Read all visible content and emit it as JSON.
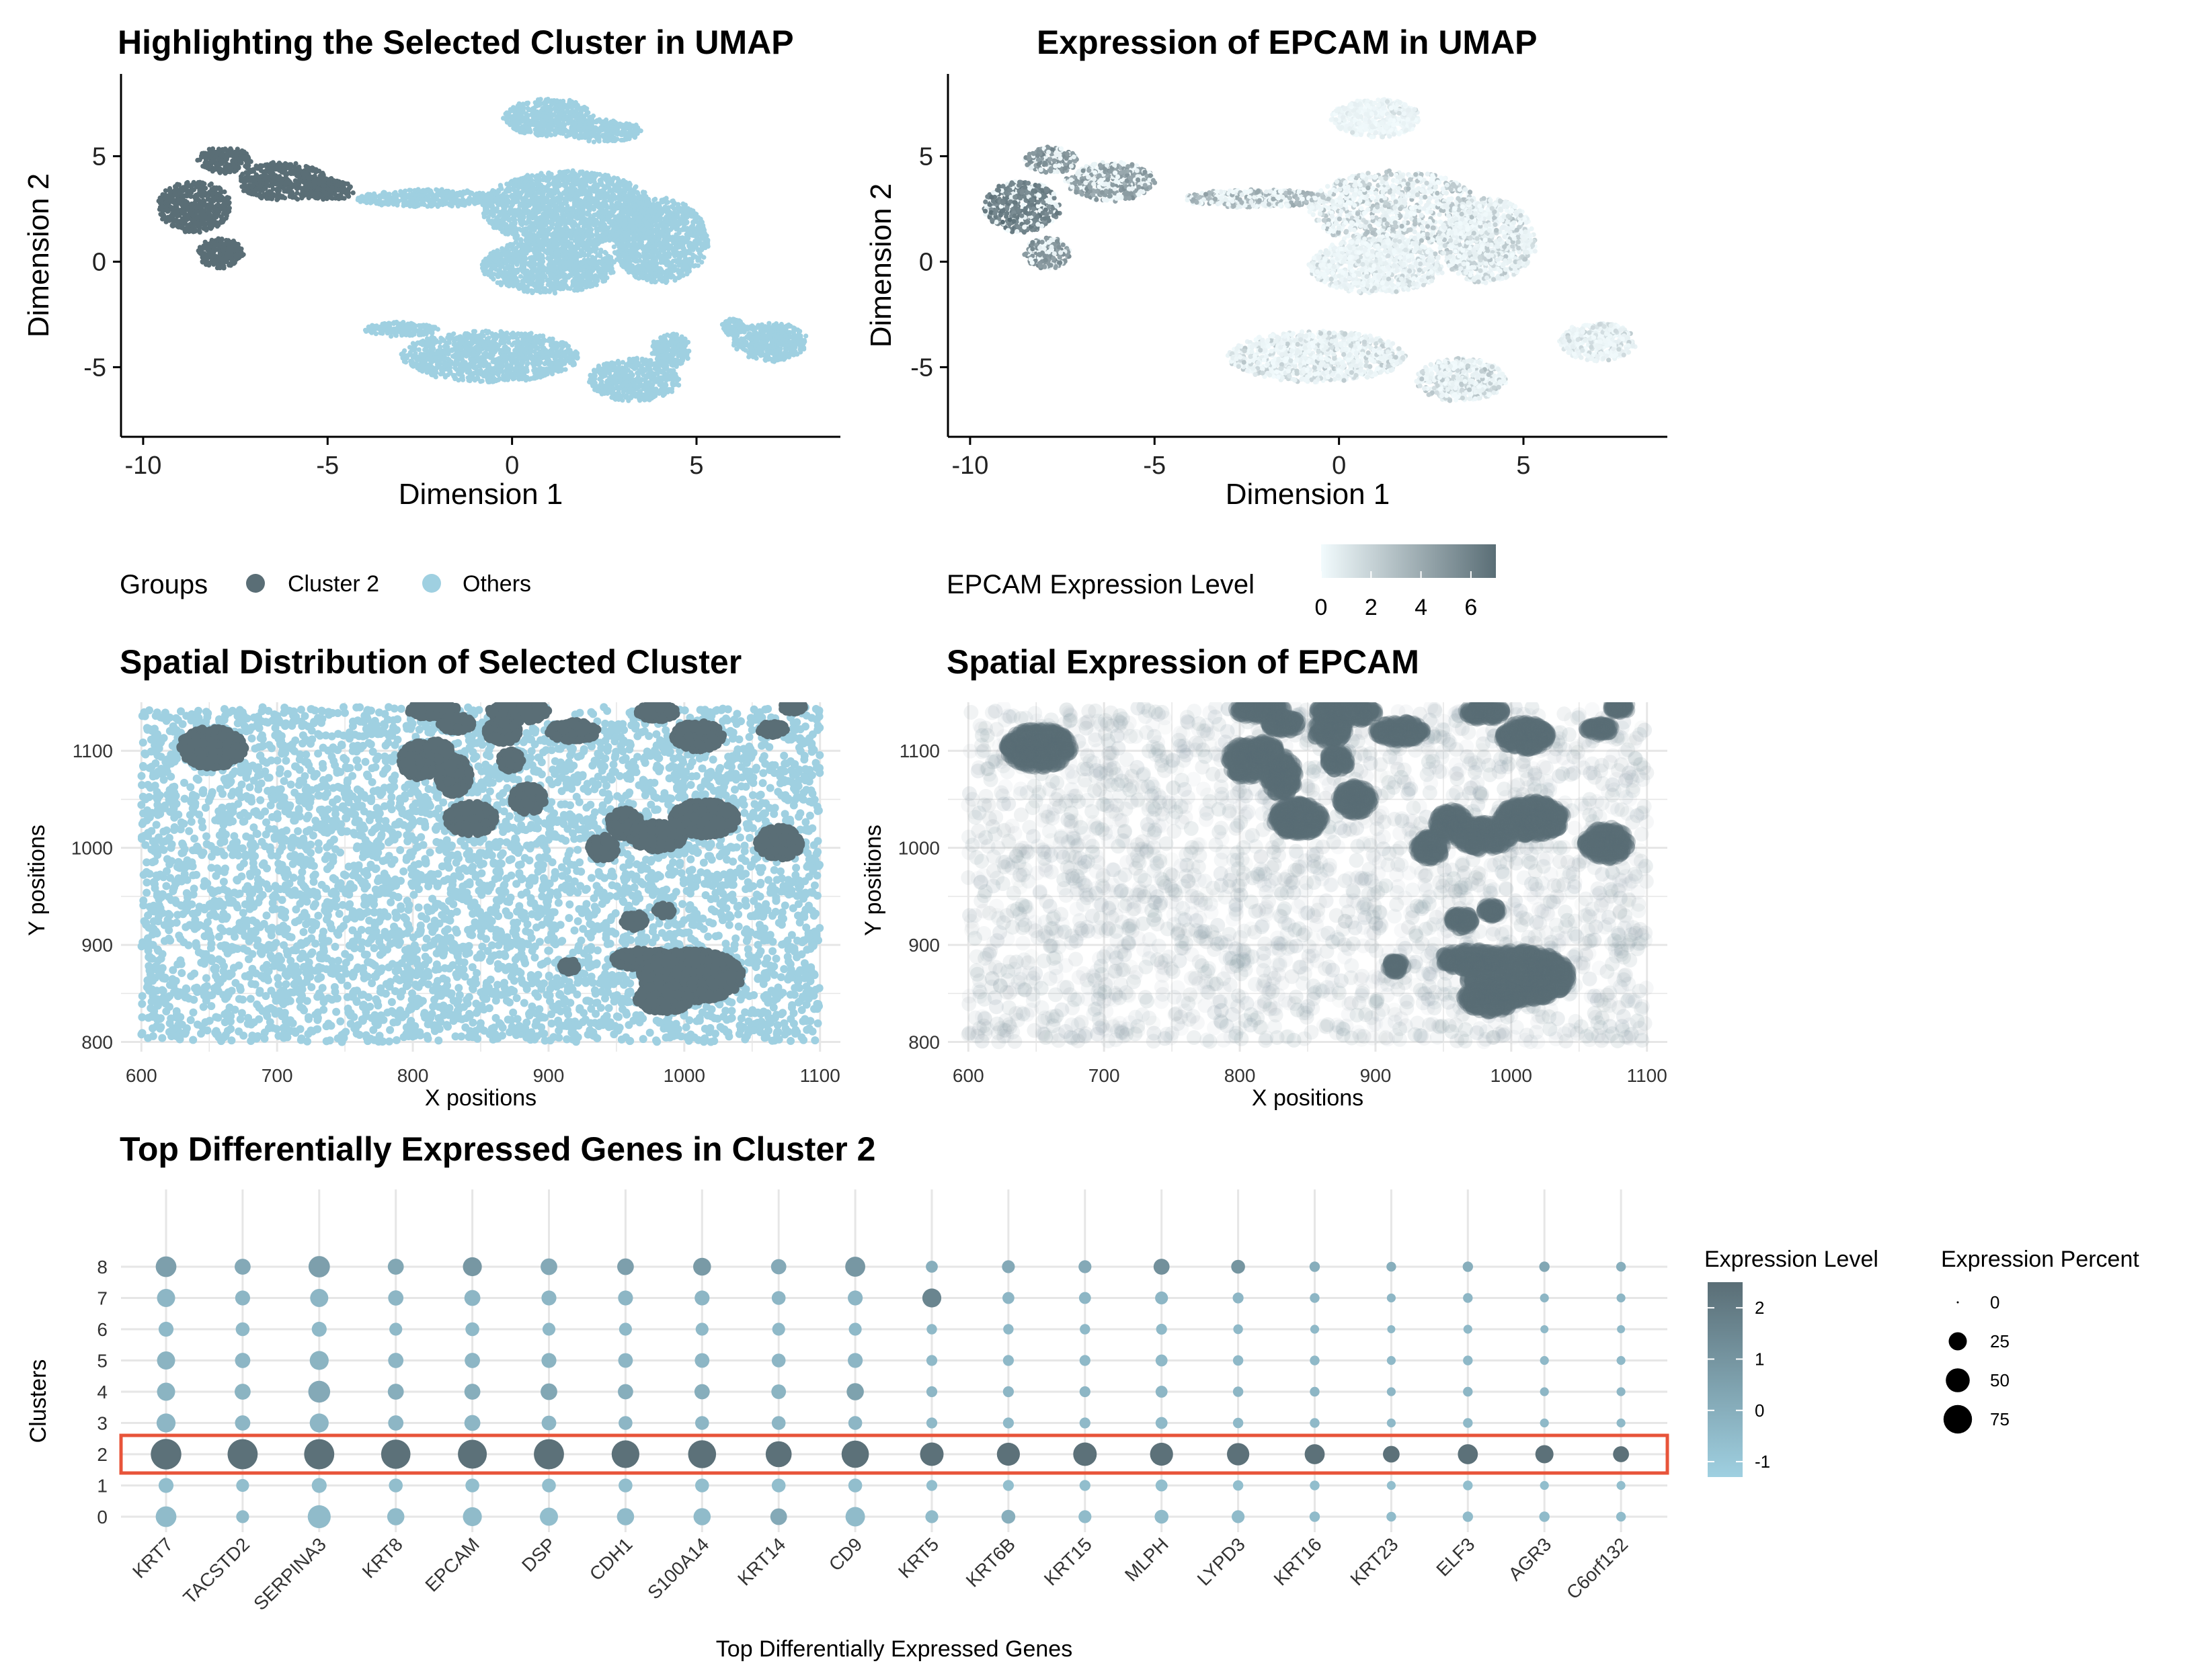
{
  "colors": {
    "cluster": "#5a6e76",
    "others": "#9fd0e1",
    "epcam_low": "#f2fbfd",
    "epcam_high": "#5a6e76",
    "dot_low": "#9fd0e1",
    "dot_high": "#5a6e76",
    "highlight": "#e8543a",
    "grid": "#e6e6e6"
  },
  "chart_data": [
    {
      "id": "umap_cluster",
      "type": "scatter",
      "title": "Highlighting the Selected Cluster in UMAP",
      "xlabel": "Dimension 1",
      "ylabel": "Dimension 2",
      "xlim": [
        -10.6,
        8.9
      ],
      "ylim": [
        -8.3,
        8.9
      ],
      "xticks": [
        -10,
        -5,
        0,
        5
      ],
      "yticks": [
        -5,
        0,
        5
      ],
      "grid": false,
      "legend": {
        "position": "bottom",
        "title": "Groups",
        "entries": [
          {
            "label": "Cluster 2",
            "color": "#5a6e76"
          },
          {
            "label": "Others",
            "color": "#9fd0e1"
          }
        ]
      },
      "regions": [
        {
          "group": "Cluster 2",
          "cx": -8.6,
          "cy": 2.6,
          "rx": 1.0,
          "ry": 1.2
        },
        {
          "group": "Cluster 2",
          "cx": -7.8,
          "cy": 4.8,
          "rx": 0.7,
          "ry": 0.6
        },
        {
          "group": "Cluster 2",
          "cx": -7.9,
          "cy": 0.4,
          "rx": 0.6,
          "ry": 0.7
        },
        {
          "group": "Cluster 2",
          "cx": -6.2,
          "cy": 3.8,
          "rx": 1.2,
          "ry": 0.9
        },
        {
          "group": "Cluster 2",
          "cx": -5.0,
          "cy": 3.4,
          "rx": 0.7,
          "ry": 0.5
        },
        {
          "group": "Others",
          "cx": -2.2,
          "cy": 3.0,
          "rx": 2.0,
          "ry": 0.4
        },
        {
          "group": "Others",
          "cx": 1.0,
          "cy": 6.8,
          "rx": 1.2,
          "ry": 0.9
        },
        {
          "group": "Others",
          "cx": 2.5,
          "cy": 6.2,
          "rx": 1.0,
          "ry": 0.5
        },
        {
          "group": "Others",
          "cx": 1.5,
          "cy": 2.5,
          "rx": 2.3,
          "ry": 1.8
        },
        {
          "group": "Others",
          "cx": 4.0,
          "cy": 1.0,
          "rx": 1.3,
          "ry": 2.0
        },
        {
          "group": "Others",
          "cx": 1.0,
          "cy": -0.2,
          "rx": 1.8,
          "ry": 1.3
        },
        {
          "group": "Others",
          "cx": -0.6,
          "cy": -4.5,
          "rx": 2.4,
          "ry": 1.2
        },
        {
          "group": "Others",
          "cx": -3.0,
          "cy": -3.2,
          "rx": 1.0,
          "ry": 0.3
        },
        {
          "group": "Others",
          "cx": 3.3,
          "cy": -5.6,
          "rx": 1.2,
          "ry": 1.0
        },
        {
          "group": "Others",
          "cx": 4.3,
          "cy": -4.2,
          "rx": 0.5,
          "ry": 0.8
        },
        {
          "group": "Others",
          "cx": 7.0,
          "cy": -3.8,
          "rx": 1.0,
          "ry": 0.9
        },
        {
          "group": "Others",
          "cx": 6.0,
          "cy": -3.1,
          "rx": 0.3,
          "ry": 0.4
        }
      ]
    },
    {
      "id": "umap_epcam",
      "type": "scatter",
      "title": "Expression of EPCAM in UMAP",
      "xlabel": "Dimension 1",
      "ylabel": "Dimension 2",
      "xlim": [
        -10.6,
        8.9
      ],
      "ylim": [
        -8.3,
        8.9
      ],
      "xticks": [
        -10,
        -5,
        0,
        5
      ],
      "yticks": [
        -5,
        0,
        5
      ],
      "grid": false,
      "legend": {
        "position": "bottom",
        "title": "EPCAM Expression Level",
        "range": [
          0,
          7
        ],
        "ticks": [
          0,
          2,
          4,
          6
        ]
      },
      "regions": [
        {
          "level": 6.0,
          "cx": -8.6,
          "cy": 2.6,
          "rx": 1.0,
          "ry": 1.2
        },
        {
          "level": 5.0,
          "cx": -7.8,
          "cy": 4.8,
          "rx": 0.7,
          "ry": 0.6
        },
        {
          "level": 5.0,
          "cx": -7.9,
          "cy": 0.4,
          "rx": 0.6,
          "ry": 0.7
        },
        {
          "level": 4.5,
          "cx": -6.2,
          "cy": 3.8,
          "rx": 1.2,
          "ry": 0.9
        },
        {
          "level": 3.5,
          "cx": -2.2,
          "cy": 3.0,
          "rx": 2.0,
          "ry": 0.4
        },
        {
          "level": 0.8,
          "cx": 1.0,
          "cy": 6.8,
          "rx": 1.2,
          "ry": 0.9
        },
        {
          "level": 2.5,
          "cx": 1.5,
          "cy": 2.5,
          "rx": 2.3,
          "ry": 1.8
        },
        {
          "level": 2.0,
          "cx": 4.0,
          "cy": 1.0,
          "rx": 1.3,
          "ry": 2.0
        },
        {
          "level": 1.5,
          "cx": 1.0,
          "cy": -0.2,
          "rx": 1.8,
          "ry": 1.3
        },
        {
          "level": 1.8,
          "cx": -0.6,
          "cy": -4.5,
          "rx": 2.4,
          "ry": 1.2
        },
        {
          "level": 2.0,
          "cx": 3.3,
          "cy": -5.6,
          "rx": 1.2,
          "ry": 1.0
        },
        {
          "level": 1.5,
          "cx": 7.0,
          "cy": -3.8,
          "rx": 1.0,
          "ry": 0.9
        }
      ]
    },
    {
      "id": "spatial_cluster",
      "type": "scatter",
      "title": "Spatial Distribution of Selected Cluster",
      "xlabel": "X positions",
      "ylabel": "Y positions",
      "xlim": [
        585,
        1115
      ],
      "ylim": [
        790,
        1150
      ],
      "xticks": [
        600,
        700,
        800,
        900,
        1000,
        1100
      ],
      "yticks": [
        800,
        900,
        1000,
        1100
      ],
      "grid": true,
      "background_fill": [
        600,
        1100,
        800,
        1145
      ],
      "clusters": [
        {
          "cx": 652,
          "cy": 1103,
          "rx": 24,
          "ry": 20
        },
        {
          "cx": 815,
          "cy": 1142,
          "rx": 18,
          "ry": 8
        },
        {
          "cx": 832,
          "cy": 1128,
          "rx": 12,
          "ry": 8
        },
        {
          "cx": 805,
          "cy": 1090,
          "rx": 14,
          "ry": 18
        },
        {
          "cx": 830,
          "cy": 1075,
          "rx": 12,
          "ry": 20
        },
        {
          "cx": 843,
          "cy": 1030,
          "rx": 18,
          "ry": 16
        },
        {
          "cx": 818,
          "cy": 1100,
          "rx": 10,
          "ry": 10
        },
        {
          "cx": 878,
          "cy": 1140,
          "rx": 22,
          "ry": 10
        },
        {
          "cx": 866,
          "cy": 1120,
          "rx": 12,
          "ry": 12
        },
        {
          "cx": 872,
          "cy": 1090,
          "rx": 8,
          "ry": 10
        },
        {
          "cx": 885,
          "cy": 1050,
          "rx": 12,
          "ry": 14
        },
        {
          "cx": 918,
          "cy": 1120,
          "rx": 18,
          "ry": 10
        },
        {
          "cx": 980,
          "cy": 1140,
          "rx": 14,
          "ry": 8
        },
        {
          "cx": 1010,
          "cy": 1115,
          "rx": 18,
          "ry": 14
        },
        {
          "cx": 1065,
          "cy": 1122,
          "rx": 10,
          "ry": 6
        },
        {
          "cx": 1080,
          "cy": 1145,
          "rx": 8,
          "ry": 5
        },
        {
          "cx": 956,
          "cy": 1025,
          "rx": 12,
          "ry": 14
        },
        {
          "cx": 940,
          "cy": 1000,
          "rx": 10,
          "ry": 12
        },
        {
          "cx": 980,
          "cy": 1012,
          "rx": 20,
          "ry": 14
        },
        {
          "cx": 1015,
          "cy": 1030,
          "rx": 24,
          "ry": 18
        },
        {
          "cx": 1070,
          "cy": 1005,
          "rx": 16,
          "ry": 16
        },
        {
          "cx": 963,
          "cy": 925,
          "rx": 8,
          "ry": 8
        },
        {
          "cx": 985,
          "cy": 935,
          "rx": 6,
          "ry": 6
        },
        {
          "cx": 915,
          "cy": 878,
          "rx": 6,
          "ry": 6
        },
        {
          "cx": 970,
          "cy": 885,
          "rx": 22,
          "ry": 10
        },
        {
          "cx": 1005,
          "cy": 868,
          "rx": 38,
          "ry": 26
        },
        {
          "cx": 985,
          "cy": 845,
          "rx": 20,
          "ry": 14
        }
      ]
    },
    {
      "id": "spatial_epcam",
      "type": "scatter",
      "title": "Spatial Expression of EPCAM",
      "xlabel": "X positions",
      "ylabel": "Y positions",
      "xlim": [
        585,
        1115
      ],
      "ylim": [
        790,
        1150
      ],
      "xticks": [
        600,
        700,
        800,
        900,
        1000,
        1100
      ],
      "yticks": [
        800,
        900,
        1000,
        1100
      ],
      "grid": true
    },
    {
      "id": "dotplot",
      "type": "scatter",
      "title": "Top Differentially Expressed Genes in Cluster 2",
      "xlabel": "Top Differentially Expressed Genes",
      "ylabel": "Clusters",
      "grid": true,
      "genes": [
        "KRT7",
        "TACSTD2",
        "SERPINA3",
        "KRT8",
        "EPCAM",
        "DSP",
        "CDH1",
        "S100A14",
        "KRT14",
        "CD9",
        "KRT5",
        "KRT6B",
        "KRT15",
        "MLPH",
        "LYPD3",
        "KRT16",
        "KRT23",
        "ELF3",
        "AGR3",
        "C6orf132"
      ],
      "clusters": [
        "0",
        "1",
        "2",
        "3",
        "4",
        "5",
        "6",
        "7",
        "8"
      ],
      "highlight_cluster": "2",
      "color_legend": {
        "title": "Expression Level",
        "range": [
          -1.3,
          2.5
        ],
        "ticks": [
          -1,
          0,
          1,
          2
        ]
      },
      "size_legend": {
        "title": "Expression Percent",
        "ticks": [
          0,
          25,
          50,
          75
        ]
      },
      "percent": [
        [
          35,
          10,
          45,
          22,
          28,
          25,
          22,
          22,
          20,
          30,
          10,
          12,
          10,
          12,
          10,
          5,
          4,
          5,
          5,
          4
        ],
        [
          15,
          10,
          15,
          12,
          12,
          12,
          12,
          12,
          12,
          12,
          6,
          6,
          6,
          8,
          5,
          4,
          3,
          4,
          3,
          3
        ],
        [
          88,
          85,
          85,
          80,
          78,
          85,
          70,
          72,
          60,
          68,
          48,
          45,
          48,
          45,
          42,
          32,
          20,
          32,
          25,
          18
        ],
        [
          28,
          16,
          28,
          16,
          18,
          14,
          12,
          12,
          12,
          12,
          6,
          6,
          6,
          8,
          5,
          4,
          3,
          4,
          3,
          3
        ],
        [
          25,
          18,
          40,
          18,
          18,
          20,
          16,
          16,
          14,
          22,
          6,
          6,
          6,
          8,
          5,
          4,
          3,
          4,
          3,
          3
        ],
        [
          25,
          16,
          28,
          16,
          16,
          15,
          14,
          14,
          12,
          15,
          6,
          6,
          6,
          8,
          5,
          4,
          3,
          4,
          3,
          3
        ],
        [
          15,
          12,
          15,
          10,
          12,
          10,
          10,
          10,
          10,
          10,
          5,
          5,
          5,
          6,
          4,
          3,
          2,
          3,
          2,
          2
        ],
        [
          25,
          15,
          25,
          16,
          18,
          15,
          15,
          15,
          12,
          15,
          28,
          8,
          8,
          10,
          6,
          4,
          3,
          4,
          3,
          3
        ],
        [
          35,
          18,
          38,
          18,
          28,
          20,
          20,
          24,
          16,
          32,
          8,
          10,
          10,
          18,
          12,
          5,
          4,
          5,
          5,
          4
        ]
      ],
      "level": [
        [
          -0.5,
          -0.5,
          -0.5,
          -0.5,
          -0.5,
          -0.6,
          -0.5,
          -0.5,
          0.2,
          -0.5,
          -0.5,
          0.0,
          -0.5,
          -0.5,
          -0.5,
          -0.5,
          -0.5,
          -0.5,
          -0.5,
          -0.5
        ],
        [
          -0.6,
          -0.6,
          -0.6,
          -0.6,
          -0.6,
          -0.6,
          -0.6,
          -0.6,
          -0.6,
          -0.6,
          -0.6,
          -0.6,
          -0.6,
          -0.6,
          -0.6,
          -0.6,
          -0.6,
          -0.6,
          -0.6,
          -0.6
        ],
        [
          2.4,
          2.4,
          2.4,
          2.4,
          2.4,
          2.4,
          2.4,
          2.4,
          2.4,
          2.4,
          2.4,
          2.4,
          2.4,
          2.4,
          2.4,
          2.4,
          2.4,
          2.4,
          2.4,
          2.4
        ],
        [
          -0.3,
          -0.3,
          -0.3,
          -0.3,
          -0.3,
          -0.3,
          -0.3,
          -0.3,
          -0.3,
          -0.3,
          -0.4,
          -0.4,
          -0.4,
          -0.4,
          -0.4,
          -0.4,
          -0.4,
          -0.4,
          -0.4,
          -0.4
        ],
        [
          -0.2,
          -0.2,
          0.2,
          0.0,
          0.0,
          0.3,
          0.0,
          0.0,
          -0.2,
          0.5,
          -0.3,
          -0.3,
          -0.3,
          -0.3,
          -0.3,
          -0.3,
          -0.3,
          -0.3,
          -0.3,
          -0.3
        ],
        [
          -0.2,
          -0.3,
          -0.2,
          -0.3,
          -0.3,
          -0.2,
          -0.3,
          -0.3,
          -0.3,
          -0.3,
          -0.4,
          -0.4,
          -0.4,
          -0.4,
          -0.4,
          -0.4,
          -0.4,
          -0.4,
          -0.4,
          -0.4
        ],
        [
          -0.4,
          -0.4,
          -0.4,
          -0.4,
          -0.4,
          -0.4,
          -0.4,
          -0.4,
          -0.4,
          -0.4,
          -0.4,
          -0.4,
          -0.4,
          -0.4,
          -0.4,
          -0.4,
          -0.4,
          -0.4,
          -0.4,
          -0.4
        ],
        [
          -0.3,
          -0.3,
          -0.3,
          -0.3,
          -0.3,
          -0.3,
          -0.3,
          -0.3,
          -0.3,
          -0.3,
          1.6,
          -0.3,
          -0.3,
          -0.3,
          -0.3,
          -0.3,
          -0.3,
          -0.3,
          -0.3,
          -0.3
        ],
        [
          0.6,
          0.2,
          0.6,
          0.3,
          0.9,
          0.2,
          0.6,
          0.8,
          0.2,
          0.9,
          0.0,
          0.2,
          0.2,
          1.2,
          1.0,
          0.0,
          0.0,
          0.0,
          0.3,
          0.0
        ]
      ]
    }
  ]
}
